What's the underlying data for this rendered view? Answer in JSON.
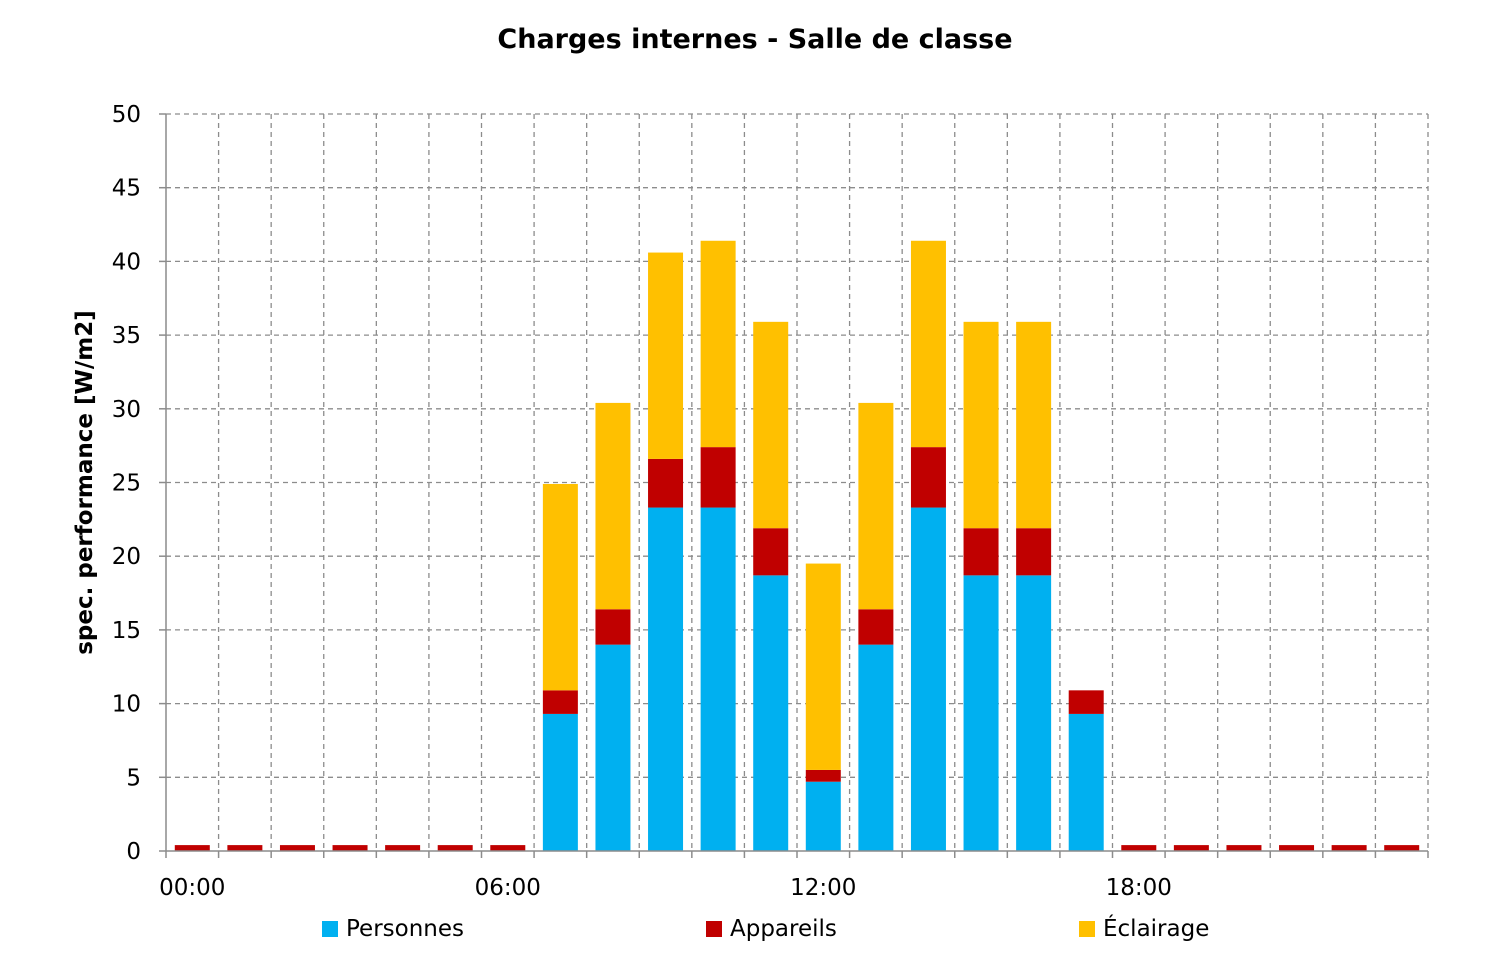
{
  "chart_data": {
    "type": "bar",
    "stacked": true,
    "title": "Charges internes - Salle de classe",
    "xlabel": "",
    "ylabel": "spec. performance [W/m2]",
    "ylim": [
      0,
      50
    ],
    "yticks": [
      0,
      5,
      10,
      15,
      20,
      25,
      30,
      35,
      40,
      45,
      50
    ],
    "categories": [
      "00:00",
      "01:00",
      "02:00",
      "03:00",
      "04:00",
      "05:00",
      "06:00",
      "07:00",
      "08:00",
      "09:00",
      "10:00",
      "11:00",
      "12:00",
      "13:00",
      "14:00",
      "15:00",
      "16:00",
      "17:00",
      "18:00",
      "19:00",
      "20:00",
      "21:00",
      "22:00",
      "23:00"
    ],
    "xtick_labels": [
      "00:00",
      "06:00",
      "12:00",
      "18:00"
    ],
    "grid": true,
    "legend_position": "bottom",
    "series": [
      {
        "name": "Personnes",
        "color": "#00b0f0",
        "values": [
          0,
          0,
          0,
          0,
          0,
          0,
          0,
          9.3,
          14.0,
          23.3,
          23.3,
          18.7,
          4.7,
          14.0,
          23.3,
          18.7,
          18.7,
          9.3,
          0,
          0,
          0,
          0,
          0,
          0
        ]
      },
      {
        "name": "Appareils",
        "color": "#c00000",
        "values": [
          0.4,
          0.4,
          0.4,
          0.4,
          0.4,
          0.4,
          0.4,
          1.6,
          2.4,
          3.3,
          4.1,
          3.2,
          0.8,
          2.4,
          4.1,
          3.2,
          3.2,
          1.6,
          0.4,
          0.4,
          0.4,
          0.4,
          0.4,
          0.4
        ]
      },
      {
        "name": "Éclairage",
        "color": "#ffc000",
        "values": [
          0,
          0,
          0,
          0,
          0,
          0,
          0,
          14.0,
          14.0,
          14.0,
          14.0,
          14.0,
          14.0,
          14.0,
          14.0,
          14.0,
          14.0,
          0,
          0,
          0,
          0,
          0,
          0,
          0
        ]
      }
    ]
  }
}
